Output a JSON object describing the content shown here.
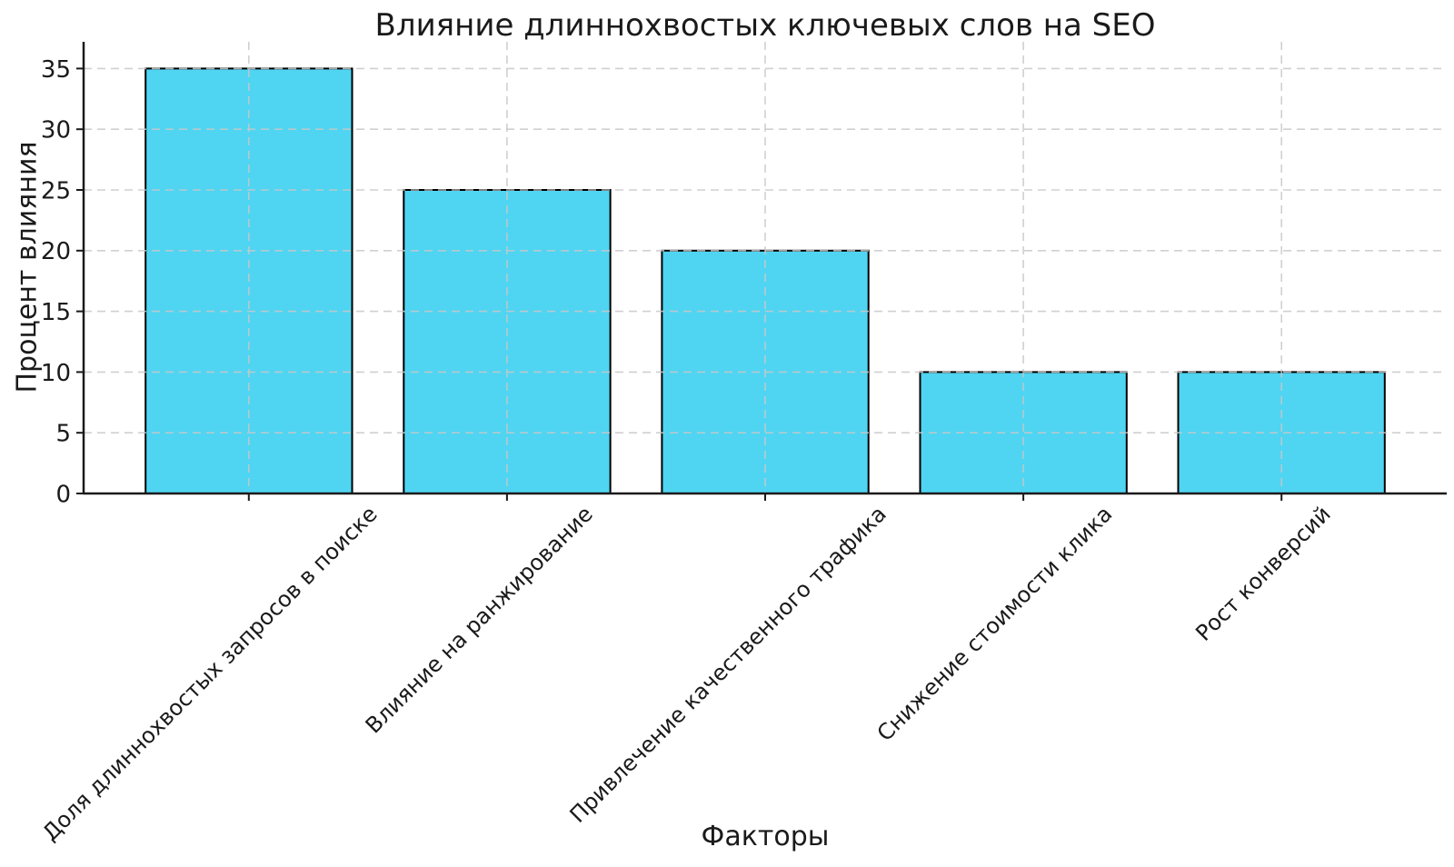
{
  "chart_data": {
    "type": "bar",
    "title": "Влияние длиннохвостых ключевых слов на SEO",
    "xlabel": "Факторы",
    "ylabel": "Процент влияния",
    "categories": [
      "Доля длиннохвостых запросов в поиске",
      "Влияние на ранжирование",
      "Привлечение качественного трафика",
      "Снижение стоимости клика",
      "Рост конверсий"
    ],
    "values": [
      35,
      25,
      20,
      10,
      10
    ],
    "yticks": [
      0,
      5,
      10,
      15,
      20,
      25,
      30,
      35
    ],
    "ylim": [
      0,
      37.2
    ],
    "x_tick_rotation": 45,
    "grid": true,
    "grid_style": "dashed",
    "legend_position": "none",
    "colors": {
      "bar_fill": "#4FD5F2",
      "bar_edge": "#000000",
      "grid": "#c8c8c8",
      "axis": "#1a1a1a",
      "text": "#1a1a1a",
      "background": "#ffffff"
    }
  }
}
